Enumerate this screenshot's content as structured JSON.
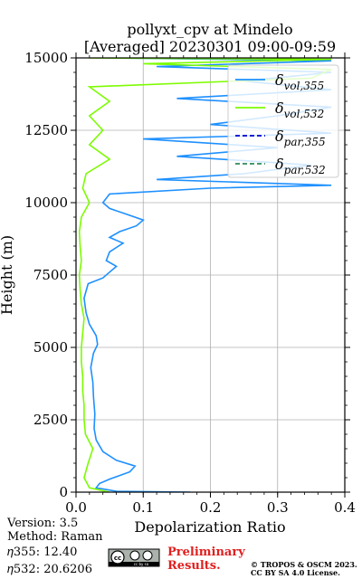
{
  "chart_data": {
    "type": "line",
    "title": "pollyxt_cpv at Mindelo",
    "subtitle": "[Averaged] 20230301 09:00-09:59",
    "xlabel": "Depolarization Ratio",
    "ylabel": "Height (m)",
    "xlim": [
      0,
      0.4
    ],
    "ylim": [
      0,
      15000
    ],
    "x_ticks": [
      "0.0",
      "0.1",
      "0.2",
      "0.3",
      "0.4"
    ],
    "y_ticks": [
      "0",
      "2500",
      "5000",
      "7500",
      "10000",
      "12500",
      "15000"
    ],
    "grid": true,
    "legend_position": "top-right",
    "series": [
      {
        "name": "vol,355",
        "color": "#1e90ff",
        "style": "solid",
        "points": [
          [
            0.17,
            0
          ],
          [
            0.06,
            30
          ],
          [
            0.03,
            150
          ],
          [
            0.035,
            300
          ],
          [
            0.05,
            450
          ],
          [
            0.08,
            700
          ],
          [
            0.088,
            900
          ],
          [
            0.06,
            1100
          ],
          [
            0.04,
            1400
          ],
          [
            0.03,
            1800
          ],
          [
            0.027,
            2200
          ],
          [
            0.028,
            2700
          ],
          [
            0.026,
            3300
          ],
          [
            0.025,
            3800
          ],
          [
            0.022,
            4300
          ],
          [
            0.026,
            4800
          ],
          [
            0.032,
            5100
          ],
          [
            0.03,
            5400
          ],
          [
            0.025,
            5600
          ],
          [
            0.02,
            5800
          ],
          [
            0.015,
            6200
          ],
          [
            0.012,
            6700
          ],
          [
            0.018,
            7200
          ],
          [
            0.04,
            7400
          ],
          [
            0.05,
            7600
          ],
          [
            0.06,
            7800
          ],
          [
            0.045,
            8000
          ],
          [
            0.05,
            8300
          ],
          [
            0.07,
            8600
          ],
          [
            0.05,
            8800
          ],
          [
            0.065,
            9000
          ],
          [
            0.09,
            9200
          ],
          [
            0.1,
            9400
          ],
          [
            0.075,
            9600
          ],
          [
            0.05,
            9800
          ],
          [
            0.04,
            10000
          ],
          [
            0.05,
            10300
          ],
          [
            0.2,
            10500
          ],
          [
            0.38,
            10600
          ],
          [
            0.12,
            10800
          ],
          [
            0.25,
            11000
          ],
          [
            0.35,
            11300
          ],
          [
            0.15,
            11600
          ],
          [
            0.3,
            11900
          ],
          [
            0.1,
            12200
          ],
          [
            0.38,
            12400
          ],
          [
            0.2,
            12700
          ],
          [
            0.3,
            13000
          ],
          [
            0.38,
            13300
          ],
          [
            0.15,
            13600
          ],
          [
            0.38,
            13900
          ],
          [
            0.25,
            14200
          ],
          [
            0.38,
            14500
          ],
          [
            0.12,
            14700
          ],
          [
            0.38,
            14900
          ],
          [
            0.05,
            15000
          ]
        ]
      },
      {
        "name": "vol,532",
        "color": "#7cfc00",
        "style": "solid",
        "points": [
          [
            0.05,
            0
          ],
          [
            0.02,
            150
          ],
          [
            0.012,
            500
          ],
          [
            0.018,
            1000
          ],
          [
            0.025,
            1500
          ],
          [
            0.014,
            2000
          ],
          [
            0.012,
            2500
          ],
          [
            0.012,
            3000
          ],
          [
            0.01,
            3500
          ],
          [
            0.01,
            4000
          ],
          [
            0.008,
            4500
          ],
          [
            0.008,
            5000
          ],
          [
            0.01,
            5500
          ],
          [
            0.012,
            6000
          ],
          [
            0.008,
            6500
          ],
          [
            0.006,
            7000
          ],
          [
            0.005,
            7500
          ],
          [
            0.008,
            8000
          ],
          [
            0.006,
            8500
          ],
          [
            0.005,
            9000
          ],
          [
            0.008,
            9500
          ],
          [
            0.02,
            10000
          ],
          [
            0.01,
            10500
          ],
          [
            0.015,
            11000
          ],
          [
            0.05,
            11500
          ],
          [
            0.02,
            12000
          ],
          [
            0.04,
            12500
          ],
          [
            0.02,
            13000
          ],
          [
            0.05,
            13500
          ],
          [
            0.02,
            14000
          ],
          [
            0.35,
            14300
          ],
          [
            0.38,
            14600
          ],
          [
            0.1,
            14800
          ],
          [
            0.38,
            14950
          ],
          [
            0.02,
            15000
          ]
        ]
      },
      {
        "name": "par,355",
        "color": "#0000cd",
        "style": "dashed",
        "points": []
      },
      {
        "name": "par,532",
        "color": "#2e8b57",
        "style": "dashed",
        "points": []
      }
    ],
    "legend": [
      {
        "base": "δ",
        "sub": "vol,355",
        "color": "#1e90ff",
        "style": "solid"
      },
      {
        "base": "δ",
        "sub": "vol,532",
        "color": "#7cfc00",
        "style": "solid"
      },
      {
        "base": "δ",
        "sub": "par,355",
        "color": "#0000cd",
        "style": "dashed"
      },
      {
        "base": "δ",
        "sub": "par,532",
        "color": "#2e8b57",
        "style": "dashed"
      }
    ]
  },
  "info": {
    "version": "Version: 3.5",
    "method": "Method: Raman",
    "eta355": "𝜂355:  12.40",
    "eta532": "𝜂532: 20.6206"
  },
  "license_badge": {
    "text": "cc by sa",
    "icon": "creative-commons-icon"
  },
  "preliminary": [
    "Preliminary",
    "Results."
  ],
  "copyright": [
    "© TROPOS & OSCM 2023.",
    "CC BY SA 4.0 License."
  ]
}
